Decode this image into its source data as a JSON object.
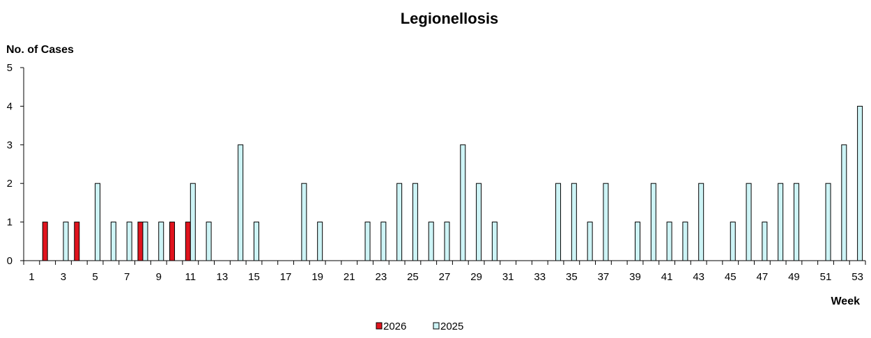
{
  "chart_data": {
    "type": "bar",
    "title": "Legionellosis",
    "ylabel": "No. of Cases",
    "xlabel": "Week",
    "ylim": [
      0,
      5
    ],
    "yticks": [
      "0",
      "1",
      "2",
      "3",
      "4",
      "5"
    ],
    "categories": [
      1,
      2,
      3,
      4,
      5,
      6,
      7,
      8,
      9,
      10,
      11,
      12,
      13,
      14,
      15,
      16,
      17,
      18,
      19,
      20,
      21,
      22,
      23,
      24,
      25,
      26,
      27,
      28,
      29,
      30,
      31,
      32,
      33,
      34,
      35,
      36,
      37,
      38,
      39,
      40,
      41,
      42,
      43,
      44,
      45,
      46,
      47,
      48,
      49,
      50,
      51,
      52,
      53
    ],
    "xtick_labels": [
      "1",
      "3",
      "5",
      "7",
      "9",
      "11",
      "13",
      "15",
      "17",
      "19",
      "21",
      "23",
      "25",
      "27",
      "29",
      "31",
      "33",
      "35",
      "37",
      "39",
      "41",
      "43",
      "45",
      "47",
      "49",
      "51",
      "53"
    ],
    "series": [
      {
        "name": "2026",
        "color": "#e0141e",
        "values": [
          0,
          1,
          0,
          1,
          0,
          0,
          0,
          1,
          0,
          1,
          1,
          0,
          0,
          0,
          0,
          0,
          0,
          0,
          0,
          0,
          0,
          0,
          0,
          0,
          0,
          0,
          0,
          0,
          0,
          0,
          0,
          0,
          0,
          0,
          0,
          0,
          0,
          0,
          0,
          0,
          0,
          0,
          0,
          0,
          0,
          0,
          0,
          0,
          0,
          0,
          0,
          0,
          0
        ]
      },
      {
        "name": "2025",
        "color": "#cdf4f6",
        "values": [
          0,
          0,
          1,
          0,
          2,
          1,
          1,
          1,
          1,
          0,
          2,
          1,
          0,
          3,
          1,
          0,
          0,
          2,
          1,
          0,
          0,
          1,
          1,
          2,
          2,
          1,
          1,
          3,
          2,
          1,
          0,
          0,
          0,
          2,
          2,
          1,
          2,
          0,
          1,
          2,
          1,
          1,
          2,
          0,
          1,
          2,
          1,
          2,
          2,
          0,
          2,
          3,
          4
        ]
      }
    ],
    "grid": false,
    "legend_position": "bottom-center"
  }
}
